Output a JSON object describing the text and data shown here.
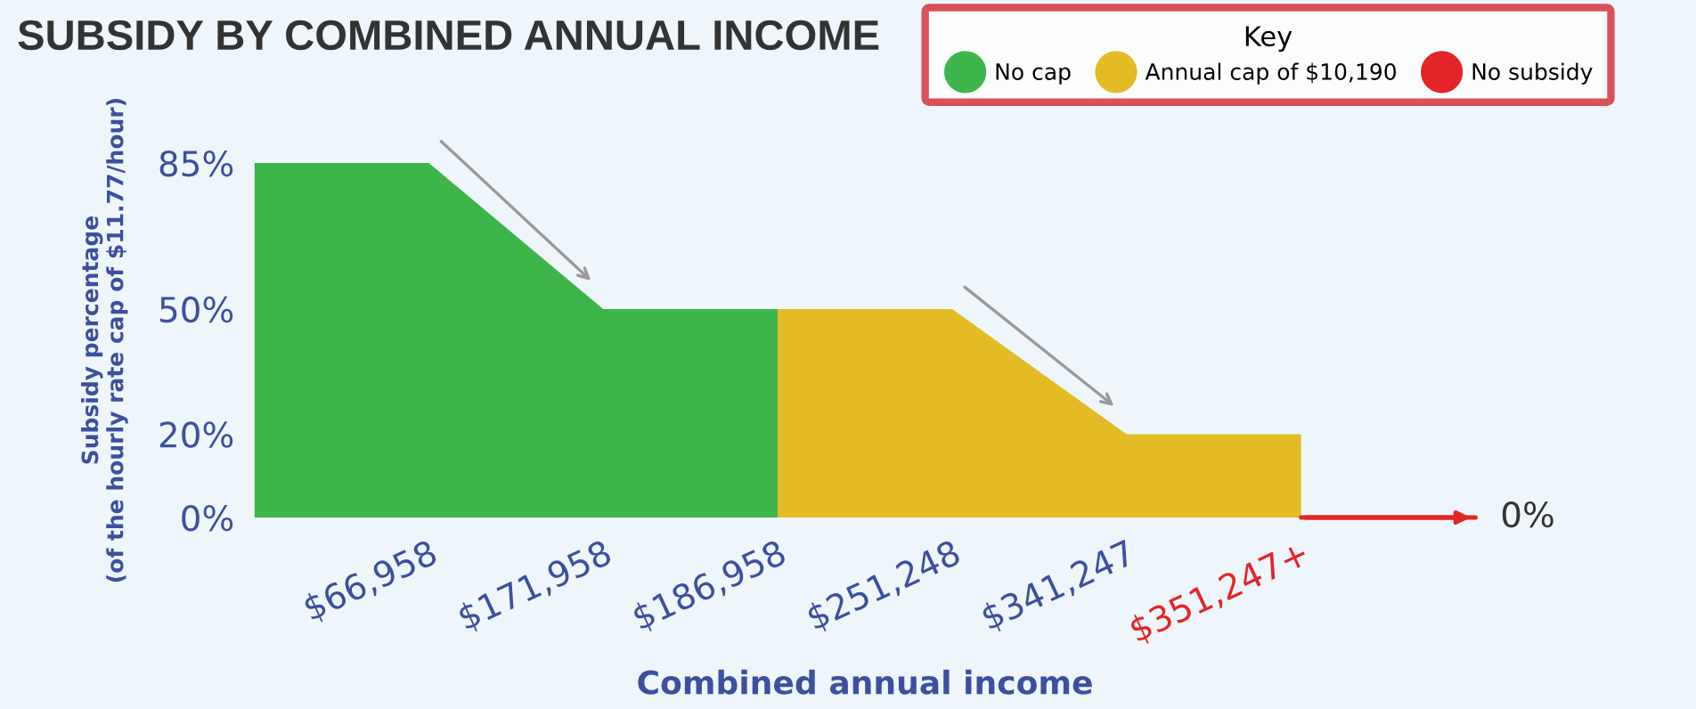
{
  "chart_data": {
    "type": "area",
    "title": "SUBSIDY BY COMBINED ANNUAL INCOME",
    "xlabel": "Combined annual income",
    "ylabel": "Subsidy percentage\n(of the hourly rate cap of $11.77/hour)",
    "legend_title": "Key",
    "legend": "top right",
    "categories": [
      null,
      "$66,958",
      "$171,958",
      "$186,958",
      "$251,248",
      "$341,247",
      "$351,247+",
      null
    ],
    "series": [
      {
        "name": "No cap",
        "color": "#3db54a",
        "values": [
          85,
          85,
          50,
          50,
          null,
          null,
          null,
          null
        ]
      },
      {
        "name": "Annual cap of $10,190",
        "color": "#e3bc25",
        "values": [
          null,
          null,
          null,
          50,
          50,
          20,
          20,
          null
        ]
      },
      {
        "name": "No subsidy",
        "color": "#e42527",
        "type": "line",
        "values": [
          null,
          null,
          null,
          null,
          null,
          null,
          0,
          0
        ]
      }
    ],
    "ylim": [
      0,
      85
    ],
    "yticks": [
      {
        "value": 0,
        "label": "0%"
      },
      {
        "value": 20,
        "label": "20%"
      },
      {
        "value": 50,
        "label": "50%"
      },
      {
        "value": 85,
        "label": "85%"
      }
    ],
    "annotations": [
      "0%"
    ],
    "grid": false
  }
}
